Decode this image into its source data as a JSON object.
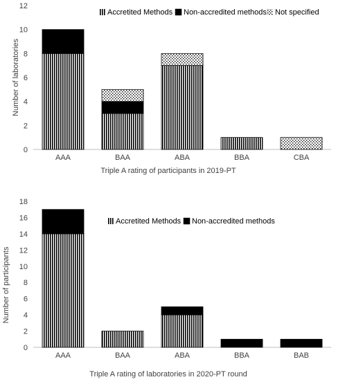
{
  "chart_data": [
    {
      "type": "bar",
      "stacked": true,
      "categories": [
        "AAA",
        "BAA",
        "ABA",
        "BBA",
        "CBA"
      ],
      "series": [
        {
          "name": "Accretited Methods",
          "pattern": "vertical-stripes",
          "values": [
            8,
            3,
            7,
            1,
            0
          ]
        },
        {
          "name": "Non-accredited methods",
          "pattern": "solid-black",
          "values": [
            2,
            1,
            0,
            0,
            0
          ]
        },
        {
          "name": "Not specified",
          "pattern": "dots",
          "values": [
            0,
            1,
            1,
            0,
            1
          ]
        }
      ],
      "xlabel": "Triple A rating of participants in 2019-PT",
      "ylabel": "Number of laboratories",
      "ylim": [
        0,
        12
      ],
      "yticks": [
        "0",
        "2",
        "4",
        "6",
        "8",
        "10",
        "12"
      ],
      "grid": false,
      "legend": "top"
    },
    {
      "type": "bar",
      "stacked": true,
      "categories": [
        "AAA",
        "BAA",
        "ABA",
        "BBA",
        "BAB"
      ],
      "series": [
        {
          "name": "Accretited Methods",
          "pattern": "vertical-stripes",
          "values": [
            14,
            2,
            4,
            0,
            0
          ]
        },
        {
          "name": "Non-accredited methods",
          "pattern": "solid-black",
          "values": [
            3,
            0,
            1,
            1,
            1
          ]
        }
      ],
      "xlabel": "Triple A rating of laboratories in 2020-PT round",
      "ylabel": "Number of participants",
      "ylim": [
        0,
        18
      ],
      "yticks": [
        "0",
        "2",
        "4",
        "6",
        "8",
        "10",
        "12",
        "14",
        "16",
        "18"
      ],
      "grid": false,
      "legend": "top-right"
    }
  ],
  "colors": {
    "bar_ink": "#000000",
    "axis_text": "#404040",
    "axis_line": "#bfbfbf",
    "background": "#ffffff"
  }
}
